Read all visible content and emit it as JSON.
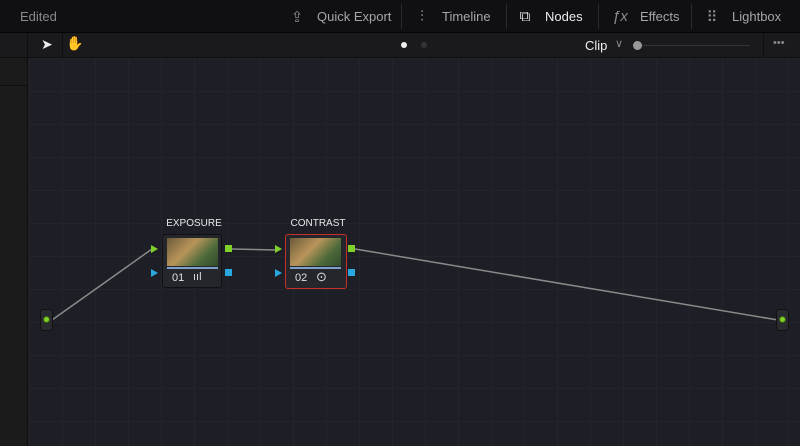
{
  "header": {
    "status": "Edited",
    "tabs": [
      {
        "label": "Quick Export",
        "icon": "export-icon"
      },
      {
        "label": "Timeline",
        "icon": "timeline-icon"
      },
      {
        "label": "Nodes",
        "icon": "nodes-icon",
        "active": true
      },
      {
        "label": "Effects",
        "icon": "fx-icon"
      },
      {
        "label": "Lightbox",
        "icon": "grid-icon"
      }
    ]
  },
  "toolbar": {
    "mode": "Clip",
    "more": "•••"
  },
  "nodes": [
    {
      "label": "EXPOSURE",
      "number": "01",
      "icon": "bars-icon",
      "selected": false
    },
    {
      "label": "CONTRAST",
      "number": "02",
      "icon": "circle-dot-icon",
      "selected": true
    }
  ],
  "colors": {
    "rgb_input": "#7fd22a",
    "alpha": "#29a8e0",
    "selected": "#c8302c"
  }
}
